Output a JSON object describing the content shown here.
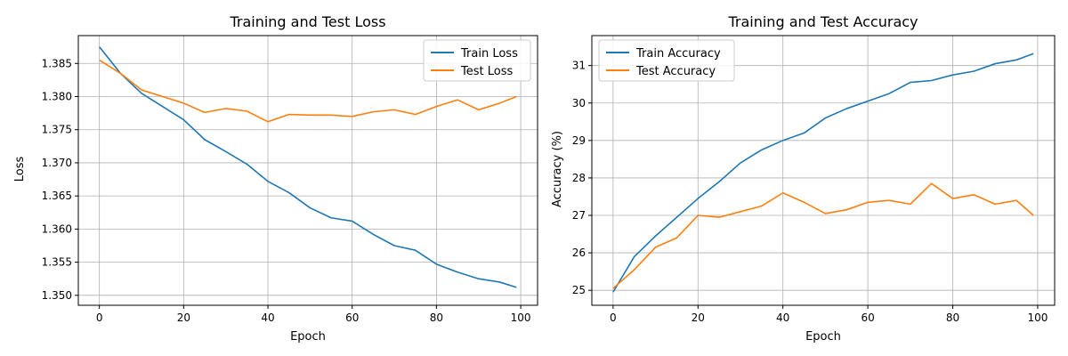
{
  "chart_data": [
    {
      "type": "line",
      "title": "Training and Test Loss",
      "xlabel": "Epoch",
      "ylabel": "Loss",
      "xlim": [
        -5,
        104
      ],
      "ylim": [
        1.3485,
        1.3892
      ],
      "xticks": [
        0,
        20,
        40,
        60,
        80,
        100
      ],
      "yticks": [
        1.35,
        1.355,
        1.36,
        1.365,
        1.37,
        1.375,
        1.38,
        1.385
      ],
      "ytick_labels": [
        "1.350",
        "1.355",
        "1.360",
        "1.365",
        "1.370",
        "1.375",
        "1.380",
        "1.385"
      ],
      "grid": true,
      "legend_position": "top-right",
      "series": [
        {
          "name": "Train Loss",
          "color": "#1f77b4",
          "x": [
            0,
            5,
            10,
            15,
            20,
            25,
            30,
            35,
            40,
            45,
            50,
            55,
            60,
            65,
            70,
            75,
            80,
            85,
            90,
            95,
            99
          ],
          "values": [
            1.3875,
            1.3835,
            1.3805,
            1.3785,
            1.3765,
            1.3735,
            1.3717,
            1.3698,
            1.3672,
            1.3655,
            1.3632,
            1.3617,
            1.3612,
            1.3592,
            1.3575,
            1.3568,
            1.3547,
            1.3535,
            1.3525,
            1.352,
            1.3512
          ]
        },
        {
          "name": "Test Loss",
          "color": "#ff7f0e",
          "x": [
            0,
            5,
            10,
            15,
            20,
            25,
            30,
            35,
            40,
            45,
            50,
            55,
            60,
            65,
            70,
            75,
            80,
            85,
            90,
            95,
            99
          ],
          "values": [
            1.3855,
            1.3835,
            1.381,
            1.38,
            1.379,
            1.3776,
            1.3782,
            1.3778,
            1.3762,
            1.3773,
            1.3772,
            1.3772,
            1.377,
            1.3777,
            1.378,
            1.3773,
            1.3785,
            1.3795,
            1.378,
            1.379,
            1.38
          ]
        }
      ]
    },
    {
      "type": "line",
      "title": "Training and Test Accuracy",
      "xlabel": "Epoch",
      "ylabel": "Accuracy (%)",
      "xlim": [
        -5,
        104
      ],
      "ylim": [
        24.6,
        31.8
      ],
      "xticks": [
        0,
        20,
        40,
        60,
        80,
        100
      ],
      "yticks": [
        25,
        26,
        27,
        28,
        29,
        30,
        31
      ],
      "ytick_labels": [
        "25",
        "26",
        "27",
        "28",
        "29",
        "30",
        "31"
      ],
      "grid": true,
      "legend_position": "top-left",
      "series": [
        {
          "name": "Train Accuracy",
          "color": "#1f77b4",
          "x": [
            0,
            5,
            10,
            15,
            20,
            25,
            30,
            35,
            40,
            45,
            50,
            55,
            60,
            65,
            70,
            75,
            80,
            85,
            90,
            95,
            99
          ],
          "values": [
            24.95,
            25.9,
            26.45,
            26.95,
            27.45,
            27.9,
            28.4,
            28.75,
            29.0,
            29.2,
            29.6,
            29.85,
            30.05,
            30.25,
            30.55,
            30.6,
            30.75,
            30.85,
            31.05,
            31.15,
            31.32
          ]
        },
        {
          "name": "Test Accuracy",
          "color": "#ff7f0e",
          "x": [
            0,
            5,
            10,
            15,
            20,
            25,
            30,
            35,
            40,
            45,
            50,
            55,
            60,
            65,
            70,
            75,
            80,
            85,
            90,
            95,
            99
          ],
          "values": [
            25.05,
            25.55,
            26.15,
            26.4,
            27.0,
            26.95,
            27.1,
            27.25,
            27.6,
            27.35,
            27.05,
            27.15,
            27.35,
            27.4,
            27.3,
            27.85,
            27.45,
            27.55,
            27.3,
            27.4,
            27.0
          ]
        }
      ]
    }
  ]
}
